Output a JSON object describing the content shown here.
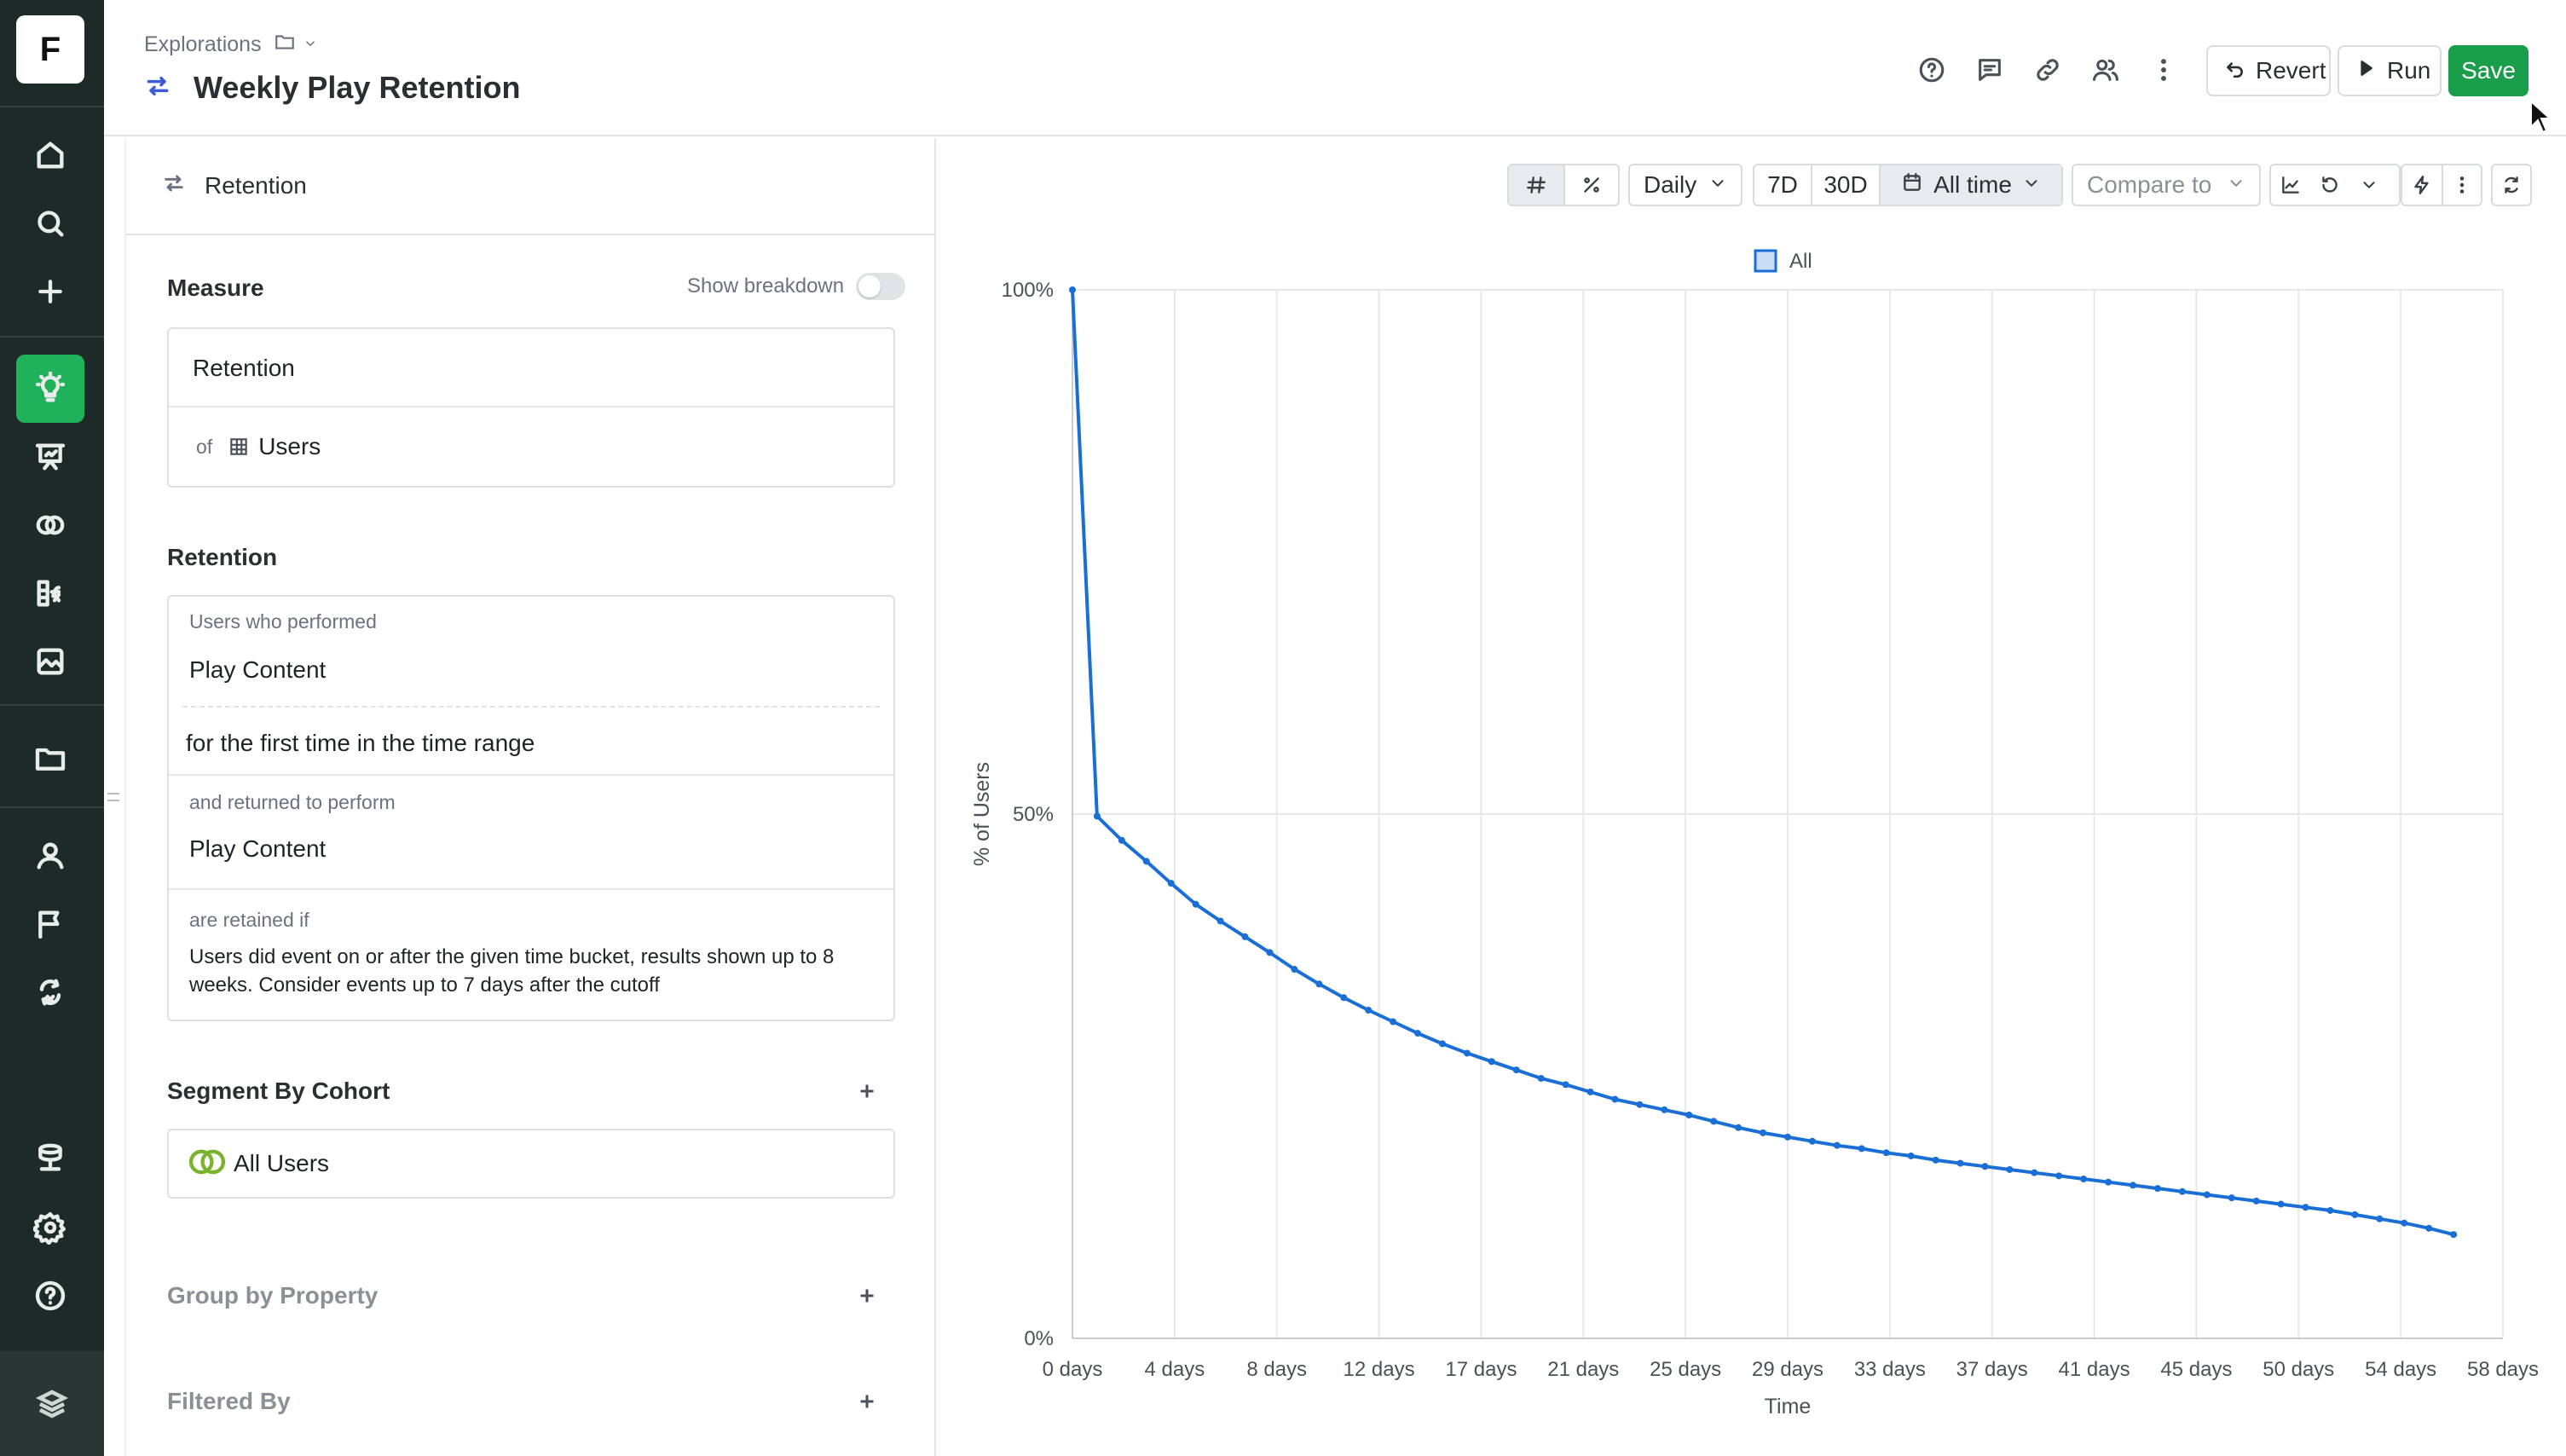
{
  "app": {
    "logo_letter": "F"
  },
  "rail": {
    "items": [
      {
        "name": "home-icon",
        "active": false
      },
      {
        "name": "search-icon",
        "active": false
      },
      {
        "name": "plus-icon",
        "active": false
      },
      {
        "name": "lightbulb-icon",
        "active": true
      },
      {
        "name": "presentation-icon",
        "active": false
      },
      {
        "name": "cohorts-icon",
        "active": false
      },
      {
        "name": "metrics-fx-icon",
        "active": false
      },
      {
        "name": "chart-image-icon",
        "active": false
      },
      {
        "name": "folder-icon",
        "active": false
      },
      {
        "name": "user-icon",
        "active": false
      },
      {
        "name": "flag-icon",
        "active": false
      },
      {
        "name": "experiment-icon",
        "active": false
      },
      {
        "name": "database-icon",
        "active": false
      },
      {
        "name": "settings-icon",
        "active": false
      },
      {
        "name": "help-icon",
        "active": false
      }
    ],
    "footer_icon": "stack-logo-icon"
  },
  "header": {
    "breadcrumb": "Explorations",
    "title": "Weekly Play Retention",
    "buttons": {
      "revert": "Revert",
      "run": "Run",
      "save": "Save"
    },
    "icons": [
      "help-icon",
      "comment-icon",
      "link-icon",
      "users-icon",
      "more-vertical-icon"
    ]
  },
  "panel": {
    "header_label": "Retention",
    "measure": {
      "title": "Measure",
      "toggle_label": "Show breakdown",
      "toggle_on": false,
      "metric": "Retention",
      "of_label": "of",
      "entity": "Users"
    },
    "retention": {
      "title": "Retention",
      "performed_label": "Users who performed",
      "performed_event": "Play Content",
      "first_time_text": "for the first time in the time range",
      "returned_label": "and returned to perform",
      "returned_event": "Play Content",
      "retained_label": "are retained if",
      "retained_line1": "Users did event on or after the given time bucket, results shown up to 8",
      "retained_line2": "weeks. Consider events up to 7 days after the cutoff"
    },
    "segment": {
      "title": "Segment By Cohort",
      "cohort": "All Users"
    },
    "group_by": {
      "title": "Group by Property"
    },
    "filtered_by": {
      "title": "Filtered By"
    }
  },
  "toolbar": {
    "granularity": "Daily",
    "range_7d": "7D",
    "range_30d": "30D",
    "range": "All time",
    "compare": "Compare to"
  },
  "chart_data": {
    "type": "line",
    "legend": [
      "All"
    ],
    "legend_placement": "top-center",
    "xlabel": "Time",
    "ylabel": "% of Users",
    "ylim": [
      0,
      100
    ],
    "y_ticks": [
      "100%",
      "50%",
      "0%"
    ],
    "x_ticks": [
      "0 days",
      "4 days",
      "8 days",
      "12 days",
      "17 days",
      "21 days",
      "25 days",
      "29 days",
      "33 days",
      "37 days",
      "41 days",
      "45 days",
      "50 days",
      "54 days",
      "58 days"
    ],
    "grid": true,
    "series_color": "#1a6fd6",
    "series": [
      {
        "name": "All",
        "x": [
          0,
          1,
          2,
          3,
          4,
          5,
          6,
          7,
          8,
          9,
          10,
          11,
          12,
          13,
          14,
          15,
          16,
          17,
          18,
          19,
          20,
          21,
          22,
          23,
          24,
          25,
          26,
          27,
          28,
          29,
          30,
          31,
          32,
          33,
          34,
          35,
          36,
          37,
          38,
          39,
          40,
          41,
          42,
          43,
          44,
          45,
          46,
          47,
          48,
          49,
          50,
          51,
          52,
          53,
          54,
          55,
          56
        ],
        "values": [
          100,
          49.8,
          47.5,
          45.5,
          43.4,
          41.4,
          39.8,
          38.3,
          36.8,
          35.2,
          33.8,
          32.5,
          31.3,
          30.2,
          29.1,
          28.1,
          27.2,
          26.4,
          25.6,
          24.8,
          24.2,
          23.5,
          22.8,
          22.3,
          21.8,
          21.3,
          20.7,
          20.1,
          19.6,
          19.2,
          18.8,
          18.4,
          18.1,
          17.7,
          17.4,
          17.0,
          16.7,
          16.4,
          16.1,
          15.8,
          15.5,
          15.2,
          14.9,
          14.6,
          14.3,
          14.0,
          13.7,
          13.4,
          13.1,
          12.8,
          12.5,
          12.2,
          11.8,
          11.4,
          11.0,
          10.5,
          9.9
        ]
      }
    ]
  }
}
